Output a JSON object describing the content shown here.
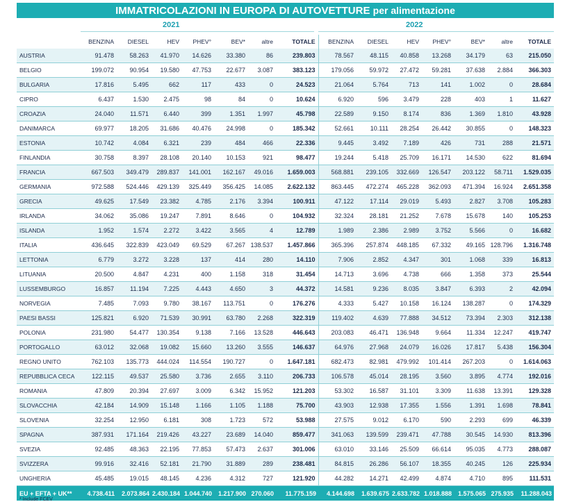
{
  "title": {
    "main": "IMMATRICOLAZIONI IN EUROPA DI AUTOVETTURE",
    "sub": "per alimentazione"
  },
  "years": [
    "2021",
    "2022"
  ],
  "columns": [
    "BENZINA",
    "DIESEL",
    "HEV",
    "PHEV°",
    "BEV*",
    "altre",
    "TOTALE",
    "BENZINA",
    "DIESEL",
    "HEV",
    "PHEV°",
    "BEV*",
    "altre",
    "TOTALE"
  ],
  "rows": [
    [
      "AUSTRIA",
      "91.478",
      "58.263",
      "41.970",
      "14.626",
      "33.380",
      "86",
      "239.803",
      "78.567",
      "48.115",
      "40.858",
      "13.268",
      "34.179",
      "63",
      "215.050"
    ],
    [
      "BELGIO",
      "199.072",
      "90.954",
      "19.580",
      "47.753",
      "22.677",
      "3.087",
      "383.123",
      "179.056",
      "59.972",
      "27.472",
      "59.281",
      "37.638",
      "2.884",
      "366.303"
    ],
    [
      "BULGARIA",
      "17.816",
      "5.495",
      "662",
      "117",
      "433",
      "0",
      "24.523",
      "21.064",
      "5.764",
      "713",
      "141",
      "1.002",
      "0",
      "28.684"
    ],
    [
      "CIPRO",
      "6.437",
      "1.530",
      "2.475",
      "98",
      "84",
      "0",
      "10.624",
      "6.920",
      "596",
      "3.479",
      "228",
      "403",
      "1",
      "11.627"
    ],
    [
      "CROAZIA",
      "24.040",
      "11.571",
      "6.440",
      "399",
      "1.351",
      "1.997",
      "45.798",
      "22.589",
      "9.150",
      "8.174",
      "836",
      "1.369",
      "1.810",
      "43.928"
    ],
    [
      "DANIMARCA",
      "69.977",
      "18.205",
      "31.686",
      "40.476",
      "24.998",
      "0",
      "185.342",
      "52.661",
      "10.111",
      "28.254",
      "26.442",
      "30.855",
      "0",
      "148.323"
    ],
    [
      "ESTONIA",
      "10.742",
      "4.084",
      "6.321",
      "239",
      "484",
      "466",
      "22.336",
      "9.445",
      "3.492",
      "7.189",
      "426",
      "731",
      "288",
      "21.571"
    ],
    [
      "FINLANDIA",
      "30.758",
      "8.397",
      "28.108",
      "20.140",
      "10.153",
      "921",
      "98.477",
      "19.244",
      "5.418",
      "25.709",
      "16.171",
      "14.530",
      "622",
      "81.694"
    ],
    [
      "FRANCIA",
      "667.503",
      "349.479",
      "289.837",
      "141.001",
      "162.167",
      "49.016",
      "1.659.003",
      "568.881",
      "239.105",
      "332.669",
      "126.547",
      "203.122",
      "58.711",
      "1.529.035"
    ],
    [
      "GERMANIA",
      "972.588",
      "524.446",
      "429.139",
      "325.449",
      "356.425",
      "14.085",
      "2.622.132",
      "863.445",
      "472.274",
      "465.228",
      "362.093",
      "471.394",
      "16.924",
      "2.651.358"
    ],
    [
      "GRECIA",
      "49.625",
      "17.549",
      "23.382",
      "4.785",
      "2.176",
      "3.394",
      "100.911",
      "47.122",
      "17.114",
      "29.019",
      "5.493",
      "2.827",
      "3.708",
      "105.283"
    ],
    [
      "IRLANDA",
      "34.062",
      "35.086",
      "19.247",
      "7.891",
      "8.646",
      "0",
      "104.932",
      "32.324",
      "28.181",
      "21.252",
      "7.678",
      "15.678",
      "140",
      "105.253"
    ],
    [
      "ISLANDA",
      "1.952",
      "1.574",
      "2.272",
      "3.422",
      "3.565",
      "4",
      "12.789",
      "1.989",
      "2.386",
      "2.989",
      "3.752",
      "5.566",
      "0",
      "16.682"
    ],
    [
      "ITALIA",
      "436.645",
      "322.839",
      "423.049",
      "69.529",
      "67.267",
      "138.537",
      "1.457.866",
      "365.396",
      "257.874",
      "448.185",
      "67.332",
      "49.165",
      "128.796",
      "1.316.748"
    ],
    [
      "LETTONIA",
      "6.779",
      "3.272",
      "3.228",
      "137",
      "414",
      "280",
      "14.110",
      "7.906",
      "2.852",
      "4.347",
      "301",
      "1.068",
      "339",
      "16.813"
    ],
    [
      "LITUANIA",
      "20.500",
      "4.847",
      "4.231",
      "400",
      "1.158",
      "318",
      "31.454",
      "14.713",
      "3.696",
      "4.738",
      "666",
      "1.358",
      "373",
      "25.544"
    ],
    [
      "LUSSEMBURGO",
      "16.857",
      "11.194",
      "7.225",
      "4.443",
      "4.650",
      "3",
      "44.372",
      "14.581",
      "9.236",
      "8.035",
      "3.847",
      "6.393",
      "2",
      "42.094"
    ],
    [
      "NORVEGIA",
      "7.485",
      "7.093",
      "9.780",
      "38.167",
      "113.751",
      "0",
      "176.276",
      "4.333",
      "5.427",
      "10.158",
      "16.124",
      "138.287",
      "0",
      "174.329"
    ],
    [
      "PAESI BASSI",
      "125.821",
      "6.920",
      "71.539",
      "30.991",
      "63.780",
      "2.268",
      "322.319",
      "119.402",
      "4.639",
      "77.888",
      "34.512",
      "73.394",
      "2.303",
      "312.138"
    ],
    [
      "POLONIA",
      "231.980",
      "54.477",
      "130.354",
      "9.138",
      "7.166",
      "13.528",
      "446.643",
      "203.083",
      "46.471",
      "136.948",
      "9.664",
      "11.334",
      "12.247",
      "419.747"
    ],
    [
      "PORTOGALLO",
      "63.012",
      "32.068",
      "19.082",
      "15.660",
      "13.260",
      "3.555",
      "146.637",
      "64.976",
      "27.968",
      "24.079",
      "16.026",
      "17.817",
      "5.438",
      "156.304"
    ],
    [
      "REGNO UNITO",
      "762.103",
      "135.773",
      "444.024",
      "114.554",
      "190.727",
      "0",
      "1.647.181",
      "682.473",
      "82.981",
      "479.992",
      "101.414",
      "267.203",
      "0",
      "1.614.063"
    ],
    [
      "REPUBBLICA CECA",
      "122.115",
      "49.537",
      "25.580",
      "3.736",
      "2.655",
      "3.110",
      "206.733",
      "106.578",
      "45.014",
      "28.195",
      "3.560",
      "3.895",
      "4.774",
      "192.016"
    ],
    [
      "ROMANIA",
      "47.809",
      "20.394",
      "27.697",
      "3.009",
      "6.342",
      "15.952",
      "121.203",
      "53.302",
      "16.587",
      "31.101",
      "3.309",
      "11.638",
      "13.391",
      "129.328"
    ],
    [
      "SLOVACCHIA",
      "42.184",
      "14.909",
      "15.148",
      "1.166",
      "1.105",
      "1.188",
      "75.700",
      "43.903",
      "12.938",
      "17.355",
      "1.556",
      "1.391",
      "1.698",
      "78.841"
    ],
    [
      "SLOVENIA",
      "32.254",
      "12.950",
      "6.181",
      "308",
      "1.723",
      "572",
      "53.988",
      "27.575",
      "9.012",
      "6.170",
      "590",
      "2.293",
      "699",
      "46.339"
    ],
    [
      "SPAGNA",
      "387.931",
      "171.164",
      "219.426",
      "43.227",
      "23.689",
      "14.040",
      "859.477",
      "341.063",
      "139.599",
      "239.471",
      "47.788",
      "30.545",
      "14.930",
      "813.396"
    ],
    [
      "SVEZIA",
      "92.485",
      "48.363",
      "22.195",
      "77.853",
      "57.473",
      "2.637",
      "301.006",
      "63.010",
      "33.146",
      "25.509",
      "66.614",
      "95.035",
      "4.773",
      "288.087"
    ],
    [
      "SVIZZERA",
      "99.916",
      "32.416",
      "52.181",
      "21.790",
      "31.889",
      "289",
      "238.481",
      "84.815",
      "26.286",
      "56.107",
      "18.355",
      "40.245",
      "126",
      "225.934"
    ],
    [
      "UNGHERIA",
      "45.485",
      "19.015",
      "48.145",
      "4.236",
      "4.312",
      "727",
      "121.920",
      "44.282",
      "14.271",
      "42.499",
      "4.874",
      "4.710",
      "895",
      "111.531"
    ]
  ],
  "total_row": [
    "EU + EFTA + UK**",
    "4.738.411",
    "2.073.864",
    "2.430.184",
    "1.044.740",
    "1.217.900",
    "270.060",
    "11.775.159",
    "4.144.698",
    "1.639.675",
    "2.633.782",
    "1.018.888",
    "1.575.065",
    "275.935",
    "11.288.043"
  ],
  "footnote": "* Include FCEV",
  "colors": {
    "title_bg": "#1dadb3",
    "title_fg": "#ffffff",
    "year_fg": "#1b9fb0",
    "row_stripe": "#e4f3f6",
    "rule": "#8fcfd6",
    "text": "#1b2a4a"
  }
}
